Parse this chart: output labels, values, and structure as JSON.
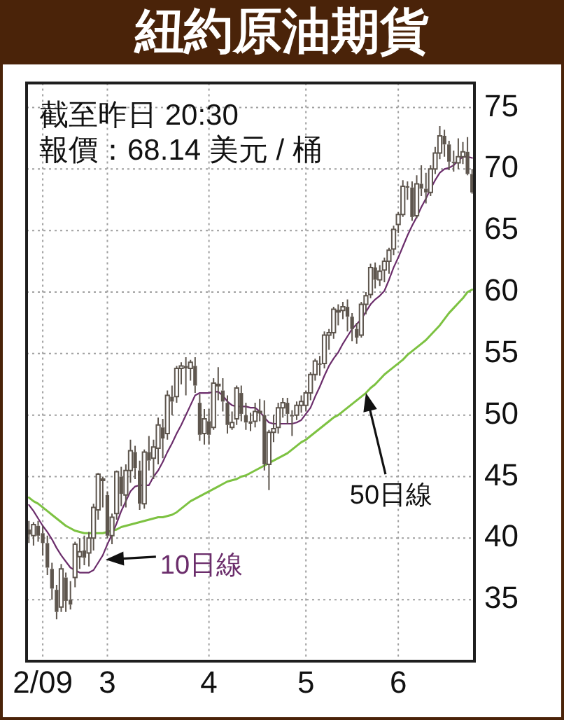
{
  "chart_data": {
    "type": "candlestick",
    "title": "紐約原油期貨",
    "annotations": [
      "截至昨日 20:30",
      "報價：68.14 美元 / 桶"
    ],
    "categories": [
      null,
      null,
      null,
      "2/09",
      null,
      null,
      null,
      null,
      null,
      null,
      null,
      null,
      null,
      null,
      null,
      null,
      null,
      "3",
      null,
      null,
      null,
      null,
      null,
      null,
      null,
      null,
      null,
      null,
      null,
      null,
      null,
      null,
      null,
      null,
      null,
      null,
      null,
      null,
      null,
      "4",
      null,
      null,
      null,
      null,
      null,
      null,
      null,
      null,
      null,
      null,
      null,
      null,
      null,
      null,
      null,
      null,
      null,
      null,
      null,
      null,
      "5",
      null,
      null,
      null,
      null,
      null,
      null,
      null,
      null,
      null,
      null,
      null,
      null,
      null,
      null,
      null,
      null,
      null,
      null,
      null,
      "6",
      null,
      null,
      null,
      null,
      null,
      null,
      null,
      null,
      null,
      null,
      null,
      null,
      null,
      null,
      null,
      null
    ],
    "ohlc": [
      [
        40.7,
        41.4,
        39.6,
        40.3
      ],
      [
        40.2,
        41.3,
        39.4,
        41.1
      ],
      [
        41.0,
        41.4,
        39.7,
        40.2
      ],
      [
        40.4,
        41.0,
        38.6,
        39.6
      ],
      [
        39.6,
        40.2,
        37.0,
        37.6
      ],
      [
        37.5,
        38.0,
        35.0,
        35.9
      ],
      [
        35.8,
        36.2,
        33.4,
        34.0
      ],
      [
        34.4,
        37.9,
        34.0,
        37.5
      ],
      [
        36.8,
        37.2,
        34.0,
        34.9
      ],
      [
        35.0,
        36.5,
        34.2,
        34.6
      ],
      [
        36.8,
        39.7,
        36.0,
        39.5
      ],
      [
        38.5,
        40.0,
        37.5,
        38.9
      ],
      [
        39.0,
        40.2,
        37.8,
        38.4
      ],
      [
        38.8,
        40.5,
        37.7,
        40.0
      ],
      [
        40.0,
        42.8,
        39.0,
        42.5
      ],
      [
        42.3,
        45.3,
        41.5,
        45.2
      ],
      [
        44.8,
        45.0,
        42.5,
        44.8
      ],
      [
        43.5,
        43.8,
        40.0,
        40.2
      ],
      [
        40.2,
        42.0,
        39.5,
        41.7
      ],
      [
        42.0,
        45.5,
        41.5,
        45.4
      ],
      [
        45.0,
        45.8,
        42.6,
        43.6
      ],
      [
        43.5,
        46.0,
        42.5,
        45.5
      ],
      [
        45.5,
        48.0,
        44.5,
        47.1
      ],
      [
        47.0,
        47.5,
        44.8,
        45.7
      ],
      [
        45.5,
        46.3,
        42.3,
        42.8
      ],
      [
        42.8,
        47.2,
        42.4,
        47.0
      ],
      [
        47.0,
        48.3,
        45.5,
        46.3
      ],
      [
        46.5,
        48.0,
        44.8,
        47.4
      ],
      [
        47.3,
        49.8,
        46.0,
        49.2
      ],
      [
        49.0,
        49.7,
        46.5,
        48.1
      ],
      [
        48.5,
        52.0,
        48.0,
        51.6
      ],
      [
        51.5,
        52.4,
        50.0,
        51.1
      ],
      [
        51.5,
        54.0,
        51.0,
        53.8
      ],
      [
        53.8,
        54.3,
        52.5,
        54.0
      ],
      [
        54.0,
        54.7,
        51.6,
        53.8
      ],
      [
        53.8,
        54.5,
        52.8,
        54.3
      ],
      [
        54.0,
        54.7,
        51.8,
        52.4
      ],
      [
        51.0,
        51.7,
        47.9,
        48.4
      ],
      [
        48.5,
        50.5,
        47.6,
        49.7
      ],
      [
        49.5,
        50.5,
        47.6,
        48.4
      ],
      [
        49.0,
        53.0,
        48.8,
        52.6
      ],
      [
        52.5,
        53.9,
        51.2,
        52.5
      ],
      [
        52.0,
        53.0,
        50.3,
        51.1
      ],
      [
        51.0,
        51.6,
        48.5,
        49.2
      ],
      [
        49.0,
        50.3,
        48.8,
        49.4
      ],
      [
        49.7,
        52.4,
        49.2,
        52.2
      ],
      [
        51.8,
        52.4,
        49.5,
        50.1
      ],
      [
        50.0,
        51.0,
        48.8,
        49.4
      ],
      [
        49.5,
        50.2,
        48.7,
        49.3
      ],
      [
        49.5,
        51.0,
        49.0,
        50.3
      ],
      [
        50.3,
        51.3,
        49.5,
        50.3
      ],
      [
        50.0,
        51.2,
        45.5,
        46.0
      ],
      [
        46.0,
        48.8,
        43.9,
        48.6
      ],
      [
        48.6,
        50.0,
        47.8,
        48.9
      ],
      [
        49.0,
        51.0,
        48.5,
        50.6
      ],
      [
        50.6,
        51.4,
        49.8,
        51.0
      ],
      [
        51.0,
        51.4,
        49.3,
        50.1
      ],
      [
        50.0,
        50.4,
        48.3,
        49.9
      ],
      [
        50.0,
        51.1,
        49.6,
        50.8
      ],
      [
        50.8,
        51.6,
        50.2,
        51.1
      ],
      [
        50.8,
        52.0,
        50.3,
        51.8
      ],
      [
        51.8,
        53.5,
        51.2,
        53.3
      ],
      [
        53.3,
        54.6,
        52.8,
        54.4
      ],
      [
        54.2,
        54.8,
        53.2,
        54.1
      ],
      [
        54.2,
        56.8,
        53.8,
        56.5
      ],
      [
        56.5,
        57.0,
        55.3,
        56.7
      ],
      [
        56.7,
        58.8,
        56.2,
        58.6
      ],
      [
        58.5,
        59.0,
        57.3,
        58.5
      ],
      [
        58.5,
        59.2,
        57.8,
        58.8
      ],
      [
        58.8,
        59.4,
        56.8,
        58.0
      ],
      [
        58.0,
        58.3,
        56.0,
        57.0
      ],
      [
        57.0,
        57.5,
        55.8,
        56.3
      ],
      [
        56.5,
        59.2,
        56.3,
        59.0
      ],
      [
        59.0,
        60.0,
        58.2,
        59.7
      ],
      [
        59.8,
        62.3,
        59.5,
        62.0
      ],
      [
        62.0,
        62.4,
        60.3,
        61.0
      ],
      [
        61.0,
        62.2,
        60.5,
        61.7
      ],
      [
        61.8,
        62.8,
        60.8,
        62.5
      ],
      [
        62.5,
        63.6,
        61.5,
        63.4
      ],
      [
        63.5,
        65.4,
        63.0,
        65.1
      ],
      [
        65.5,
        66.5,
        64.8,
        66.3
      ],
      [
        66.3,
        69.1,
        66.1,
        68.6
      ],
      [
        68.6,
        69.0,
        67.5,
        68.5
      ],
      [
        68.5,
        69.0,
        65.8,
        66.1
      ],
      [
        66.2,
        69.5,
        66.0,
        68.8
      ],
      [
        68.8,
        70.3,
        67.8,
        68.4
      ],
      [
        68.4,
        69.7,
        67.2,
        68.1
      ],
      [
        68.1,
        70.3,
        67.8,
        70.0
      ],
      [
        70.0,
        71.8,
        69.6,
        71.3
      ],
      [
        71.3,
        73.5,
        70.8,
        72.7
      ],
      [
        72.7,
        73.2,
        71.0,
        72.0
      ],
      [
        72.0,
        72.3,
        69.9,
        70.6
      ],
      [
        70.6,
        71.5,
        69.8,
        70.5
      ],
      [
        70.5,
        72.5,
        70.0,
        71.0
      ],
      [
        71.0,
        72.2,
        70.4,
        71.4
      ],
      [
        71.4,
        72.6,
        69.5,
        69.6
      ],
      [
        69.6,
        70.0,
        68.0,
        68.1
      ]
    ],
    "color": "#5e564e",
    "series": [
      {
        "type": "line",
        "name": "10日線",
        "color": "#6b2d6b",
        "values": [
          42.7,
          42.2,
          41.6,
          41.0,
          40.5,
          39.9,
          39.2,
          38.6,
          38.1,
          37.6,
          37.4,
          37.2,
          37.2,
          37.2,
          37.4,
          38.0,
          38.6,
          39.5,
          40.3,
          41.2,
          42.2,
          43.0,
          43.8,
          44.2,
          44.3,
          44.3,
          44.3,
          45.0,
          45.5,
          46.2,
          47.0,
          47.7,
          48.5,
          49.2,
          50.0,
          50.8,
          51.6,
          51.8,
          51.8,
          51.8,
          51.9,
          51.9,
          51.6,
          51.1,
          50.8,
          50.7,
          50.7,
          50.7,
          50.6,
          50.6,
          50.3,
          49.8,
          49.4,
          49.3,
          49.3,
          49.3,
          49.3,
          49.3,
          49.4,
          49.6,
          50.1,
          50.6,
          51.5,
          52.3,
          53.2,
          54.0,
          54.6,
          55.1,
          55.8,
          56.4,
          57.0,
          57.4,
          57.8,
          58.4,
          59.0,
          59.4,
          59.7,
          60.1,
          61.0,
          62.0,
          62.8,
          63.7,
          64.6,
          65.4,
          66.1,
          66.9,
          67.6,
          68.4,
          69.1,
          69.7,
          70.0,
          70.1,
          70.3,
          70.7,
          71.0,
          71.0,
          70.9
        ]
      },
      {
        "type": "line",
        "name": "50日線",
        "color": "#7dc242",
        "values": [
          43.3,
          43.0,
          42.8,
          42.5,
          42.2,
          41.9,
          41.6,
          41.3,
          41.0,
          40.8,
          40.6,
          40.5,
          40.4,
          40.4,
          40.4,
          40.4,
          40.4,
          40.5,
          40.6,
          40.7,
          40.9,
          41.0,
          41.1,
          41.2,
          41.3,
          41.4,
          41.5,
          41.6,
          41.7,
          41.7,
          41.8,
          41.9,
          42.1,
          42.4,
          42.7,
          43.0,
          43.2,
          43.4,
          43.6,
          43.8,
          44.0,
          44.2,
          44.4,
          44.6,
          44.7,
          44.8,
          45.0,
          45.1,
          45.3,
          45.5,
          45.7,
          45.9,
          46.1,
          46.3,
          46.5,
          46.7,
          46.9,
          47.2,
          47.5,
          47.8,
          48.0,
          48.3,
          48.6,
          48.9,
          49.2,
          49.5,
          49.8,
          50.0,
          50.3,
          50.6,
          50.9,
          51.2,
          51.5,
          51.8,
          52.2,
          52.5,
          52.9,
          53.3,
          53.6,
          53.9,
          54.2,
          54.5,
          54.9,
          55.2,
          55.5,
          55.8,
          56.1,
          56.5,
          56.9,
          57.3,
          57.8,
          58.3,
          58.7,
          59.1,
          59.5,
          60.0,
          60.2
        ]
      }
    ],
    "ylim": [
      30,
      77
    ],
    "yticks": [
      35,
      40,
      45,
      50,
      55,
      60,
      65,
      70,
      75
    ],
    "grid": true
  }
}
